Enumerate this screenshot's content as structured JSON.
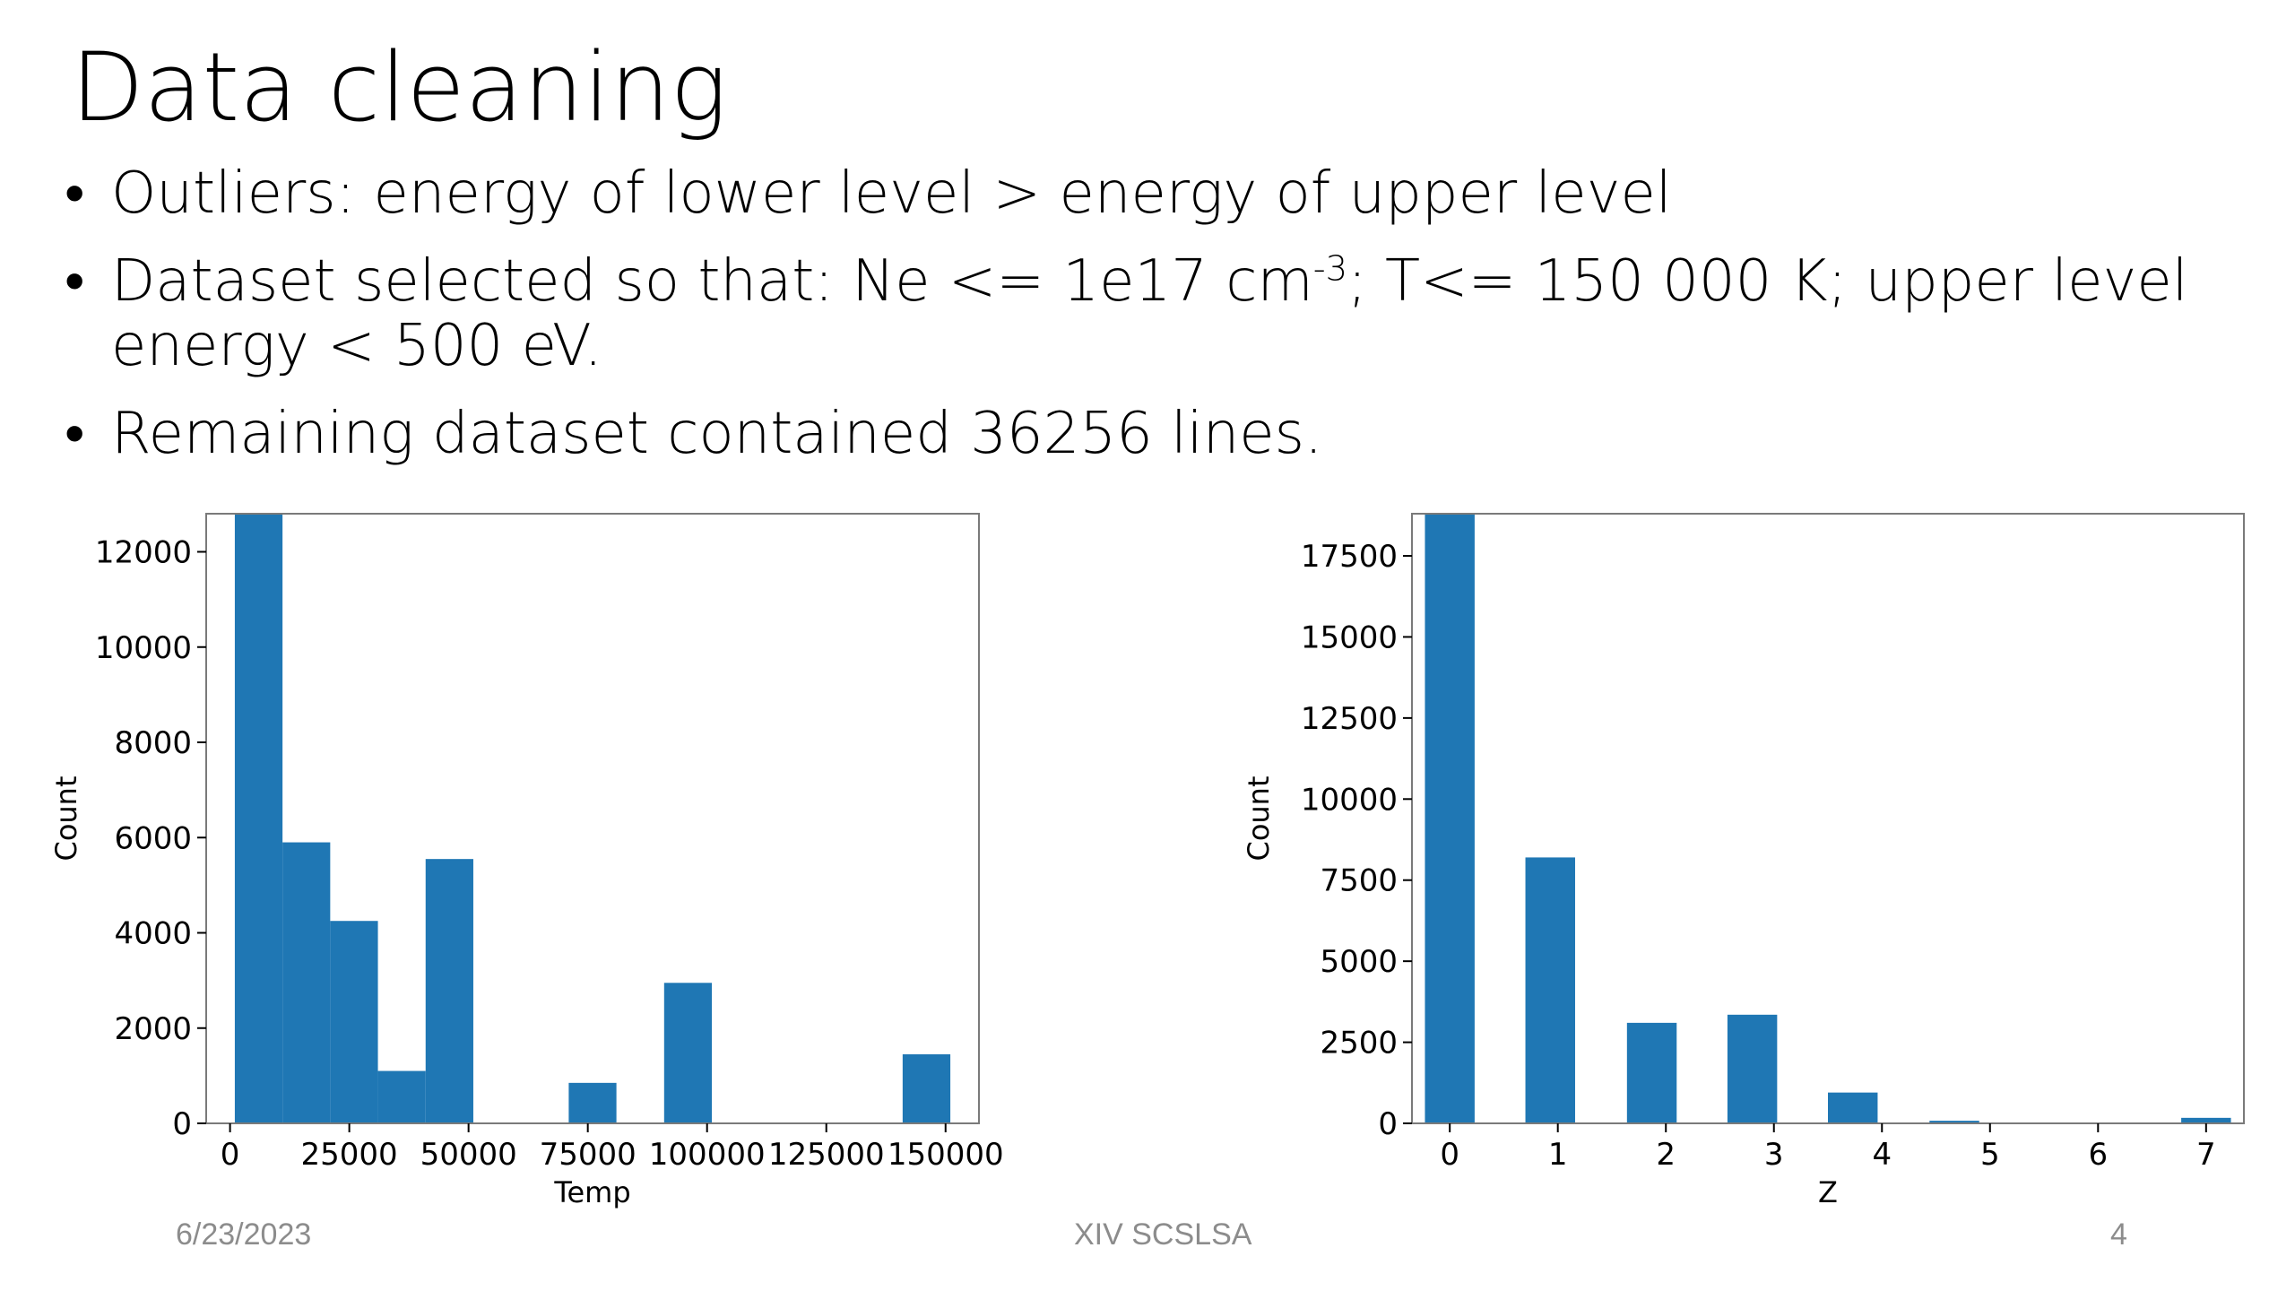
{
  "slide": {
    "title": "Data cleaning",
    "bullets": [
      {
        "text": "Outliers: energy of lower level > energy of upper level"
      },
      {
        "pre": "Dataset selected so that: Ne <= 1e17 cm",
        "sup": "-3",
        "post": "; T<= 150 000 K; upper level energy < 500 eV."
      },
      {
        "text": "Remaining dataset contained 36256 lines."
      }
    ],
    "bullet_glyph": "•"
  },
  "footer": {
    "date": "6/23/2023",
    "center": "XIV SCSLSA",
    "page": "4"
  },
  "colors": {
    "bar": "#1f77b4",
    "axis": "#000000",
    "frame": "#7a7a7a",
    "footer": "#8c8c8c"
  },
  "chart_data": [
    {
      "type": "bar",
      "xlabel": "Temp",
      "ylabel": "Count",
      "xlim": [
        -5000,
        157000
      ],
      "ylim": [
        0,
        12800
      ],
      "xticks": [
        "0",
        "25000",
        "50000",
        "75000",
        "100000",
        "125000",
        "150000"
      ],
      "xtick_values": [
        0,
        25000,
        50000,
        75000,
        100000,
        125000,
        150000
      ],
      "yticks": [
        "0",
        "2000",
        "4000",
        "6000",
        "8000",
        "10000",
        "12000"
      ],
      "ytick_values": [
        0,
        2000,
        4000,
        6000,
        8000,
        10000,
        12000
      ],
      "bin_edges": [
        1000,
        11000,
        21000,
        31000,
        41000,
        51000,
        61000,
        71000,
        81000,
        91000,
        101000,
        111000,
        121000,
        131000,
        141000,
        151000
      ],
      "values": [
        12800,
        5900,
        4250,
        1100,
        5550,
        0,
        0,
        850,
        0,
        2950,
        0,
        0,
        0,
        0,
        1450
      ]
    },
    {
      "type": "bar",
      "xlabel": "Z",
      "ylabel": "Count",
      "xlim": [
        -0.35,
        7.35
      ],
      "ylim": [
        0,
        18800
      ],
      "xticks": [
        "0",
        "1",
        "2",
        "3",
        "4",
        "5",
        "6",
        "7"
      ],
      "xtick_values": [
        0,
        1,
        2,
        3,
        4,
        5,
        6,
        7
      ],
      "yticks": [
        "0",
        "2500",
        "5000",
        "7500",
        "10000",
        "12500",
        "15000",
        "17500"
      ],
      "ytick_values": [
        0,
        2500,
        5000,
        7500,
        10000,
        12500,
        15000,
        17500
      ],
      "bar_width": 0.46,
      "x": [
        0,
        0.93,
        1.87,
        2.8,
        3.73,
        4.67,
        5.6,
        6.53,
        7.0
      ],
      "values": [
        18800,
        8200,
        3100,
        3350,
        950,
        80,
        0,
        0,
        170
      ]
    }
  ]
}
